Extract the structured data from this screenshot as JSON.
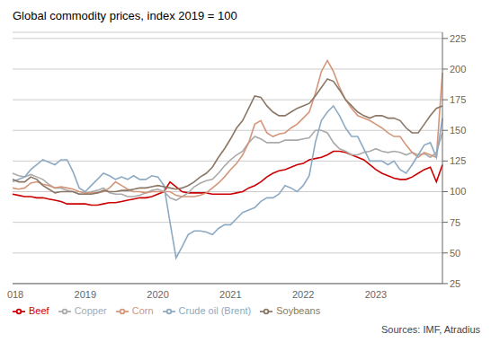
{
  "chart_data": {
    "type": "line",
    "title": "Global commodity prices, index 2019 = 100",
    "annotations": [
      "Sources: IMF, Atradius"
    ],
    "categories": [
      "2018",
      null,
      null,
      null,
      null,
      null,
      null,
      null,
      null,
      null,
      null,
      null,
      "2019",
      null,
      null,
      null,
      null,
      null,
      null,
      null,
      null,
      null,
      null,
      null,
      "2020",
      null,
      null,
      null,
      null,
      null,
      null,
      null,
      null,
      null,
      null,
      null,
      "2021",
      null,
      null,
      null,
      null,
      null,
      null,
      null,
      null,
      null,
      null,
      null,
      "2022",
      null,
      null,
      null,
      null,
      null,
      null,
      null,
      null,
      null,
      null,
      null,
      "2023",
      null,
      null,
      null,
      null,
      null,
      null,
      null,
      null,
      null,
      null,
      null
    ],
    "series": [
      {
        "name": "Beef",
        "color": "#cc0000",
        "values": [
          98,
          97,
          96,
          96,
          95,
          95,
          94,
          93,
          92,
          90,
          90,
          90,
          90,
          89,
          89,
          90,
          91,
          91,
          92,
          93,
          94,
          95,
          95,
          96,
          98,
          100,
          108,
          104,
          100,
          99,
          99,
          99,
          99,
          98,
          98,
          98,
          98,
          99,
          100,
          103,
          105,
          108,
          112,
          115,
          117,
          118,
          120,
          122,
          123,
          126,
          127,
          128,
          130,
          133,
          133,
          132,
          130,
          128,
          126,
          122,
          118,
          115,
          113,
          111,
          110,
          110,
          112,
          115,
          118,
          120,
          108,
          122
        ]
      },
      {
        "name": "Copper",
        "color": "#aaaaaa",
        "values": [
          115,
          113,
          112,
          114,
          112,
          110,
          106,
          103,
          103,
          101,
          100,
          98,
          98,
          100,
          101,
          103,
          99,
          98,
          98,
          96,
          96,
          97,
          99,
          101,
          102,
          100,
          95,
          93,
          96,
          99,
          104,
          107,
          109,
          110,
          115,
          121,
          126,
          130,
          133,
          140,
          145,
          143,
          140,
          140,
          140,
          142,
          142,
          142,
          143,
          144,
          150,
          150,
          148,
          140,
          135,
          133,
          130,
          130,
          132,
          133,
          135,
          133,
          132,
          133,
          132,
          130,
          132,
          130,
          131,
          128,
          132,
          148
        ]
      },
      {
        "name": "Corn",
        "color": "#d4967a",
        "values": [
          103,
          102,
          103,
          107,
          108,
          106,
          105,
          103,
          104,
          103,
          102,
          100,
          99,
          99,
          99,
          100,
          103,
          108,
          105,
          102,
          100,
          100,
          99,
          100,
          100,
          100,
          100,
          97,
          96,
          96,
          96,
          97,
          99,
          103,
          107,
          112,
          118,
          123,
          130,
          140,
          155,
          158,
          148,
          145,
          147,
          148,
          152,
          155,
          160,
          165,
          180,
          198,
          207,
          198,
          185,
          175,
          168,
          162,
          160,
          158,
          155,
          152,
          148,
          145,
          145,
          138,
          132,
          128,
          132,
          130,
          128,
          197
        ]
      },
      {
        "name": "Crude oil (Brent)",
        "color": "#8daac4",
        "values": [
          108,
          110,
          112,
          118,
          122,
          126,
          124,
          122,
          126,
          126,
          116,
          103,
          100,
          105,
          110,
          115,
          113,
          110,
          112,
          110,
          113,
          110,
          110,
          113,
          112,
          105,
          75,
          46,
          55,
          65,
          68,
          68,
          67,
          65,
          70,
          73,
          73,
          78,
          83,
          85,
          87,
          92,
          95,
          95,
          98,
          105,
          103,
          100,
          105,
          113,
          140,
          158,
          165,
          170,
          162,
          152,
          145,
          145,
          135,
          125,
          125,
          125,
          122,
          125,
          118,
          115,
          122,
          130,
          138,
          140,
          128,
          160
        ]
      },
      {
        "name": "Soybeans",
        "color": "#8b7765",
        "values": [
          110,
          108,
          108,
          112,
          110,
          105,
          102,
          99,
          100,
          100,
          100,
          98,
          98,
          98,
          99,
          101,
          100,
          100,
          101,
          101,
          102,
          103,
          103,
          104,
          105,
          104,
          103,
          102,
          103,
          105,
          108,
          112,
          115,
          120,
          128,
          135,
          143,
          152,
          158,
          168,
          178,
          177,
          170,
          165,
          162,
          162,
          165,
          168,
          170,
          172,
          178,
          185,
          192,
          190,
          183,
          175,
          170,
          165,
          162,
          160,
          162,
          162,
          160,
          160,
          158,
          152,
          148,
          148,
          155,
          162,
          168,
          170
        ]
      }
    ],
    "ylim": [
      25,
      230
    ],
    "yticks": [
      25,
      50,
      75,
      100,
      125,
      150,
      175,
      200,
      225
    ],
    "grid": true,
    "legend": "bottom"
  }
}
